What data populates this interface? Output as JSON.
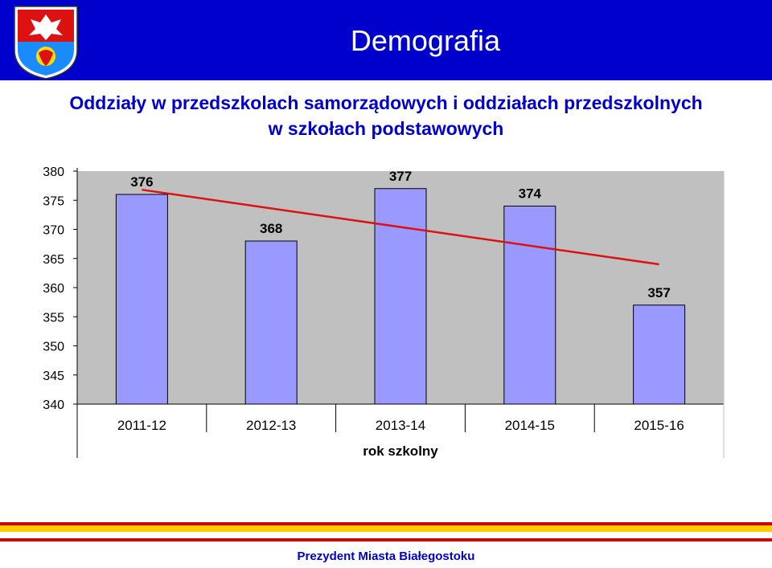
{
  "header": {
    "deck_title": "Demografia",
    "colors": {
      "band": "#0000cc",
      "title_text": "#ffffff"
    }
  },
  "chart_title": {
    "line1": "Oddziały w przedszkolach samorządowych i oddziałach przedszkolnych",
    "line2": "w szkołach podstawowych"
  },
  "chart_data": {
    "type": "bar",
    "categories": [
      "2011-12",
      "2012-13",
      "2013-14",
      "2014-15",
      "2015-16"
    ],
    "values": [
      376,
      368,
      377,
      374,
      357
    ],
    "data_labels": [
      "376",
      "368",
      "377",
      "374",
      "357"
    ],
    "xlabel": "rok szkolny",
    "ylabel": "",
    "ylim": [
      340,
      380
    ],
    "yticks": [
      340,
      345,
      350,
      355,
      360,
      365,
      370,
      375,
      380
    ],
    "trendline": {
      "type": "linear",
      "color": "#dd1111"
    },
    "bar_color": "#9999ff",
    "plot_background": "#c0c0c0",
    "grid": false,
    "legend": "none"
  },
  "footer": {
    "text": "Prezydent Miasta Białegostoku",
    "colors": [
      "#cc0000",
      "#ffcc00",
      "#ffffff"
    ]
  }
}
